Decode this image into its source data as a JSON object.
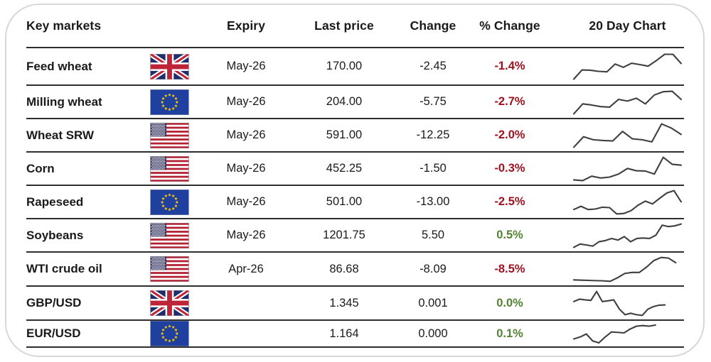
{
  "header": {
    "key_markets": "Key markets",
    "expiry": "Expiry",
    "last_price": "Last price",
    "change": "Change",
    "pct_change": "% Change",
    "chart": "20 Day Chart"
  },
  "rows": [
    {
      "name": "Feed wheat",
      "flag": "gb",
      "flag_name": "uk-flag-icon",
      "expiry": "May-26",
      "last_price": "170.00",
      "change": "-2.45",
      "pct_change": "-1.4%",
      "direction": "negative",
      "spark_span": 1
    },
    {
      "name": "Milling wheat",
      "flag": "eu",
      "flag_name": "eu-flag-icon",
      "expiry": "May-26",
      "last_price": "204.00",
      "change": "-5.75",
      "pct_change": "-2.7%",
      "direction": "negative",
      "spark_span": 1
    },
    {
      "name": "Wheat SRW",
      "flag": "us",
      "flag_name": "us-flag-icon",
      "expiry": "May-26",
      "last_price": "591.00",
      "change": "-12.25",
      "pct_change": "-2.0%",
      "direction": "negative",
      "spark_span": 1
    },
    {
      "name": "Corn",
      "flag": "us",
      "flag_name": "us-flag-icon",
      "expiry": "May-26",
      "last_price": "452.25",
      "change": "-1.50",
      "pct_change": "-0.3%",
      "direction": "negative",
      "spark_span": 1
    },
    {
      "name": "Rapeseed",
      "flag": "eu",
      "flag_name": "eu-flag-icon",
      "expiry": "May-26",
      "last_price": "501.00",
      "change": "-13.00",
      "pct_change": "-2.5%",
      "direction": "negative",
      "spark_span": 1
    },
    {
      "name": "Soybeans",
      "flag": "us",
      "flag_name": "us-flag-icon",
      "expiry": "May-26",
      "last_price": "1201.75",
      "change": "5.50",
      "pct_change": "0.5%",
      "direction": "positive",
      "spark_span": 1
    },
    {
      "name": "WTI crude oil",
      "flag": "us",
      "flag_name": "us-flag-icon",
      "expiry": "Apr-26",
      "last_price": "86.68",
      "change": "-8.09",
      "pct_change": "-8.5%",
      "direction": "negative",
      "spark_span": 0.95
    },
    {
      "name": "GBP/USD",
      "flag": "gb",
      "flag_name": "uk-flag-icon",
      "expiry": "",
      "last_price": "1.345",
      "change": "0.001",
      "pct_change": "0.0%",
      "direction": "positive",
      "spark_span": 0.85
    },
    {
      "name": "EUR/USD",
      "flag": "eu",
      "flag_name": "eu-flag-icon",
      "expiry": "",
      "last_price": "1.164",
      "change": "0.000",
      "pct_change": "0.1%",
      "direction": "positive",
      "spark_span": 0.76
    }
  ],
  "colors": {
    "negative": "#A0111F",
    "positive": "#538135",
    "sparkline": "#3F3F3F",
    "row_line": "#2E2E2E",
    "card_border": "#D8D8D8",
    "text": "#1A1A1A",
    "flag_uk_blue": "#1F2D6B",
    "flag_uk_red": "#BE2438",
    "flag_eu_blue": "#2040A0",
    "flag_eu_star": "#FFCC00",
    "flag_us_canton": "#32315E",
    "flag_us_red": "#B22234"
  },
  "chart_data": {
    "type": "table",
    "title": "Key markets",
    "columns": [
      "Key markets",
      "Expiry",
      "Last price",
      "Change",
      "% Change",
      "20 Day Chart"
    ],
    "rows": [
      {
        "market": "Feed wheat",
        "region": "UK",
        "expiry": "May-26",
        "last_price": 170.0,
        "change": -2.45,
        "pct_change": -1.4,
        "sparkline_relative": [
          4,
          38,
          37,
          33,
          31,
          60,
          48,
          63,
          58,
          52,
          73,
          96,
          96,
          62
        ]
      },
      {
        "market": "Milling wheat",
        "region": "EU",
        "expiry": "May-26",
        "last_price": 204.0,
        "change": -5.75,
        "pct_change": -2.7,
        "sparkline_relative": [
          0,
          43,
          38,
          31,
          29,
          62,
          55,
          67,
          43,
          81,
          95,
          97,
          62
        ]
      },
      {
        "market": "Wheat SRW",
        "region": "US",
        "expiry": "May-26",
        "last_price": 591.0,
        "change": -12.25,
        "pct_change": -2.0,
        "sparkline_relative": [
          0,
          45,
          32,
          29,
          27,
          68,
          36,
          32,
          23,
          100,
          82,
          55
        ]
      },
      {
        "market": "Corn",
        "region": "US",
        "expiry": "May-26",
        "last_price": 452.25,
        "change": -1.5,
        "pct_change": -0.3,
        "sparkline_relative": [
          3,
          0,
          19,
          11,
          15,
          28,
          52,
          42,
          41,
          28,
          100,
          70,
          66
        ]
      },
      {
        "market": "Rapeseed",
        "region": "EU",
        "expiry": "May-26",
        "last_price": 501.0,
        "change": -13.0,
        "pct_change": -2.5,
        "sparkline_relative": [
          19,
          33,
          19,
          21,
          29,
          27,
          0,
          2,
          14,
          38,
          55,
          43,
          67,
          90,
          100,
          52
        ]
      },
      {
        "market": "Soybeans",
        "region": "US",
        "expiry": "May-26",
        "last_price": 1201.75,
        "change": 5.5,
        "pct_change": 0.5,
        "sparkline_relative": [
          0,
          14,
          10,
          5,
          24,
          29,
          38,
          31,
          46,
          24,
          38,
          40,
          38,
          52,
          95,
          89,
          92,
          100
        ]
      },
      {
        "market": "WTI crude oil",
        "region": "US",
        "expiry": "Apr-26",
        "last_price": 86.68,
        "change": -8.09,
        "pct_change": -8.5,
        "sparkline_relative": [
          6,
          5,
          4,
          3,
          2,
          0,
          15,
          33,
          37,
          37,
          60,
          87,
          100,
          97,
          78
        ]
      },
      {
        "market": "GBP/USD",
        "region": "UK",
        "expiry": "",
        "last_price": 1.345,
        "change": 0.001,
        "pct_change": 0.0,
        "sparkline_relative": [
          58,
          68,
          65,
          63,
          100,
          58,
          61,
          65,
          26,
          3,
          9,
          3,
          0,
          26,
          37,
          43,
          44
        ]
      },
      {
        "market": "EUR/USD",
        "region": "EU",
        "expiry": "",
        "last_price": 1.164,
        "change": 0.0,
        "pct_change": 0.1,
        "sparkline_relative": [
          22,
          33,
          50,
          11,
          0,
          33,
          61,
          59,
          56,
          78,
          94,
          97,
          94,
          100
        ]
      }
    ]
  }
}
